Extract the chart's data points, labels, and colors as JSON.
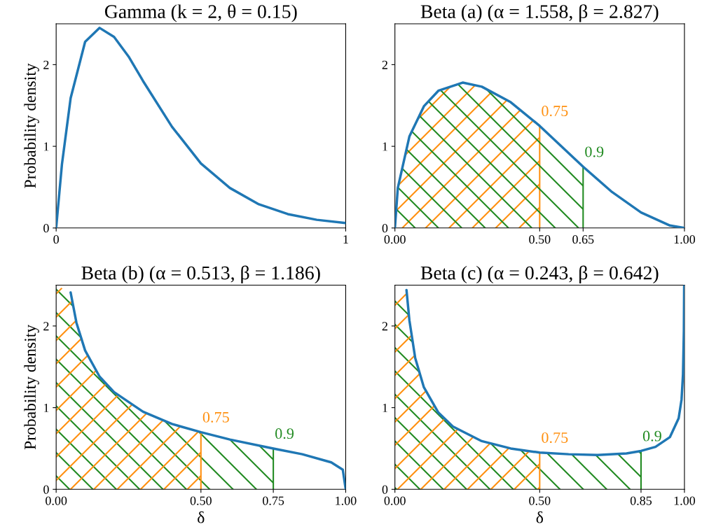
{
  "chart_data": [
    {
      "type": "line",
      "title": "Gamma (k = 2, θ = 0.15)",
      "ylabel": "Probability density",
      "xlim": [
        0,
        1
      ],
      "xticks": [
        0,
        1
      ],
      "ylim": [
        0,
        2.5
      ],
      "yticks": [
        0,
        1,
        2
      ],
      "grid": false,
      "series": [
        {
          "color": "#1f77b4",
          "x": [
            0,
            0.02,
            0.05,
            0.1,
            0.15,
            0.2,
            0.25,
            0.3,
            0.4,
            0.5,
            0.6,
            0.7,
            0.8,
            0.9,
            1.0
          ],
          "values": [
            0,
            0.78,
            1.59,
            2.28,
            2.45,
            2.34,
            2.1,
            1.8,
            1.24,
            0.79,
            0.49,
            0.29,
            0.17,
            0.1,
            0.06
          ]
        }
      ]
    },
    {
      "type": "line",
      "title": "Beta (a) (α = 1.558, β = 2.827)",
      "xlim": [
        0,
        1
      ],
      "xticks": [
        {
          "value": 0,
          "label": "0.00"
        },
        {
          "value": 0.5,
          "label": "0.50"
        },
        {
          "value": 0.65,
          "label": "0.65"
        },
        {
          "value": 1,
          "label": "1.00"
        }
      ],
      "ylim": [
        0,
        2.5
      ],
      "yticks": [
        0,
        1,
        2
      ],
      "grid": false,
      "series": [
        {
          "type": "area",
          "name": "0.75",
          "color": "#ff9010",
          "x": [
            0,
            0.01,
            0.05,
            0.1,
            0.15,
            0.234,
            0.3,
            0.4,
            0.5
          ],
          "values": [
            0,
            0.49,
            1.12,
            1.49,
            1.68,
            1.78,
            1.73,
            1.54,
            1.25
          ]
        },
        {
          "type": "area",
          "name": "0.9",
          "color": "#228b22",
          "x": [
            0,
            0.01,
            0.05,
            0.1,
            0.15,
            0.234,
            0.3,
            0.4,
            0.5,
            0.65
          ],
          "values": [
            0,
            0.49,
            1.12,
            1.49,
            1.68,
            1.78,
            1.73,
            1.54,
            1.25,
            0.75
          ]
        },
        {
          "color": "#1f77b4",
          "x": [
            0,
            0.01,
            0.05,
            0.1,
            0.15,
            0.234,
            0.3,
            0.4,
            0.5,
            0.65,
            0.75,
            0.85,
            0.95,
            1.0
          ],
          "values": [
            0,
            0.49,
            1.12,
            1.49,
            1.68,
            1.78,
            1.73,
            1.54,
            1.25,
            0.75,
            0.44,
            0.19,
            0.03,
            0
          ]
        }
      ]
    },
    {
      "type": "line",
      "title": "Beta (b) (α = 0.513, β = 1.186)",
      "ylabel": "Probability density",
      "xlabel": "δ",
      "xlim": [
        0,
        1
      ],
      "xticks": [
        {
          "value": 0,
          "label": "0.00"
        },
        {
          "value": 0.5,
          "label": "0.50"
        },
        {
          "value": 0.75,
          "label": "0.75"
        },
        {
          "value": 1,
          "label": "1.00"
        }
      ],
      "ylim": [
        0,
        2.5
      ],
      "yticks": [
        0,
        1,
        2
      ],
      "grid": false,
      "series": [
        {
          "type": "area",
          "name": "0.9",
          "color": "#228b22",
          "x": [
            0,
            0.05,
            0.07,
            0.1,
            0.15,
            0.2,
            0.3,
            0.4,
            0.5,
            0.6,
            0.75
          ],
          "values": [
            2.5,
            2.41,
            2.04,
            1.7,
            1.38,
            1.19,
            0.95,
            0.8,
            0.7,
            0.61,
            0.5
          ]
        },
        {
          "type": "area",
          "name": "0.75",
          "color": "#ff9010",
          "x": [
            0,
            0.05,
            0.07,
            0.1,
            0.15,
            0.2,
            0.3,
            0.4,
            0.5
          ],
          "values": [
            2.5,
            2.41,
            2.04,
            1.7,
            1.38,
            1.19,
            0.95,
            0.8,
            0.7
          ]
        },
        {
          "color": "#1f77b4",
          "x": [
            0.05,
            0.07,
            0.1,
            0.15,
            0.2,
            0.3,
            0.4,
            0.5,
            0.6,
            0.75,
            0.85,
            0.95,
            0.99,
            1.0
          ],
          "values": [
            2.41,
            2.04,
            1.7,
            1.38,
            1.19,
            0.95,
            0.8,
            0.7,
            0.61,
            0.5,
            0.43,
            0.33,
            0.24,
            0
          ]
        }
      ]
    },
    {
      "type": "line",
      "title": "Beta (c) (α = 0.243, β = 0.642)",
      "xlabel": "δ",
      "xlim": [
        0,
        1
      ],
      "xticks": [
        {
          "value": 0,
          "label": "0.00"
        },
        {
          "value": 0.5,
          "label": "0.50"
        },
        {
          "value": 0.85,
          "label": "0.85"
        },
        {
          "value": 1,
          "label": "1.00"
        }
      ],
      "ylim": [
        0,
        2.5
      ],
      "yticks": [
        0,
        1,
        2
      ],
      "grid": false,
      "series": [
        {
          "type": "area",
          "name": "0.9",
          "color": "#228b22",
          "x": [
            0,
            0.04,
            0.05,
            0.07,
            0.1,
            0.15,
            0.2,
            0.3,
            0.4,
            0.5,
            0.6,
            0.7,
            0.8,
            0.85
          ],
          "values": [
            2.5,
            2.44,
            2.07,
            1.61,
            1.25,
            0.94,
            0.77,
            0.59,
            0.5,
            0.45,
            0.43,
            0.42,
            0.44,
            0.47
          ]
        },
        {
          "type": "area",
          "name": "0.75",
          "color": "#ff9010",
          "x": [
            0,
            0.04,
            0.05,
            0.07,
            0.1,
            0.15,
            0.2,
            0.3,
            0.4,
            0.5
          ],
          "values": [
            2.5,
            2.44,
            2.07,
            1.61,
            1.25,
            0.94,
            0.77,
            0.59,
            0.5,
            0.45
          ]
        },
        {
          "color": "#1f77b4",
          "x": [
            0.04,
            0.05,
            0.07,
            0.1,
            0.15,
            0.2,
            0.3,
            0.4,
            0.5,
            0.6,
            0.7,
            0.8,
            0.85,
            0.9,
            0.95,
            0.98,
            0.99,
            0.995,
            0.998,
            0.999
          ],
          "values": [
            2.44,
            2.07,
            1.61,
            1.25,
            0.94,
            0.77,
            0.59,
            0.5,
            0.45,
            0.43,
            0.42,
            0.44,
            0.47,
            0.52,
            0.64,
            0.87,
            1.1,
            1.41,
            1.94,
            2.49
          ]
        }
      ]
    }
  ]
}
